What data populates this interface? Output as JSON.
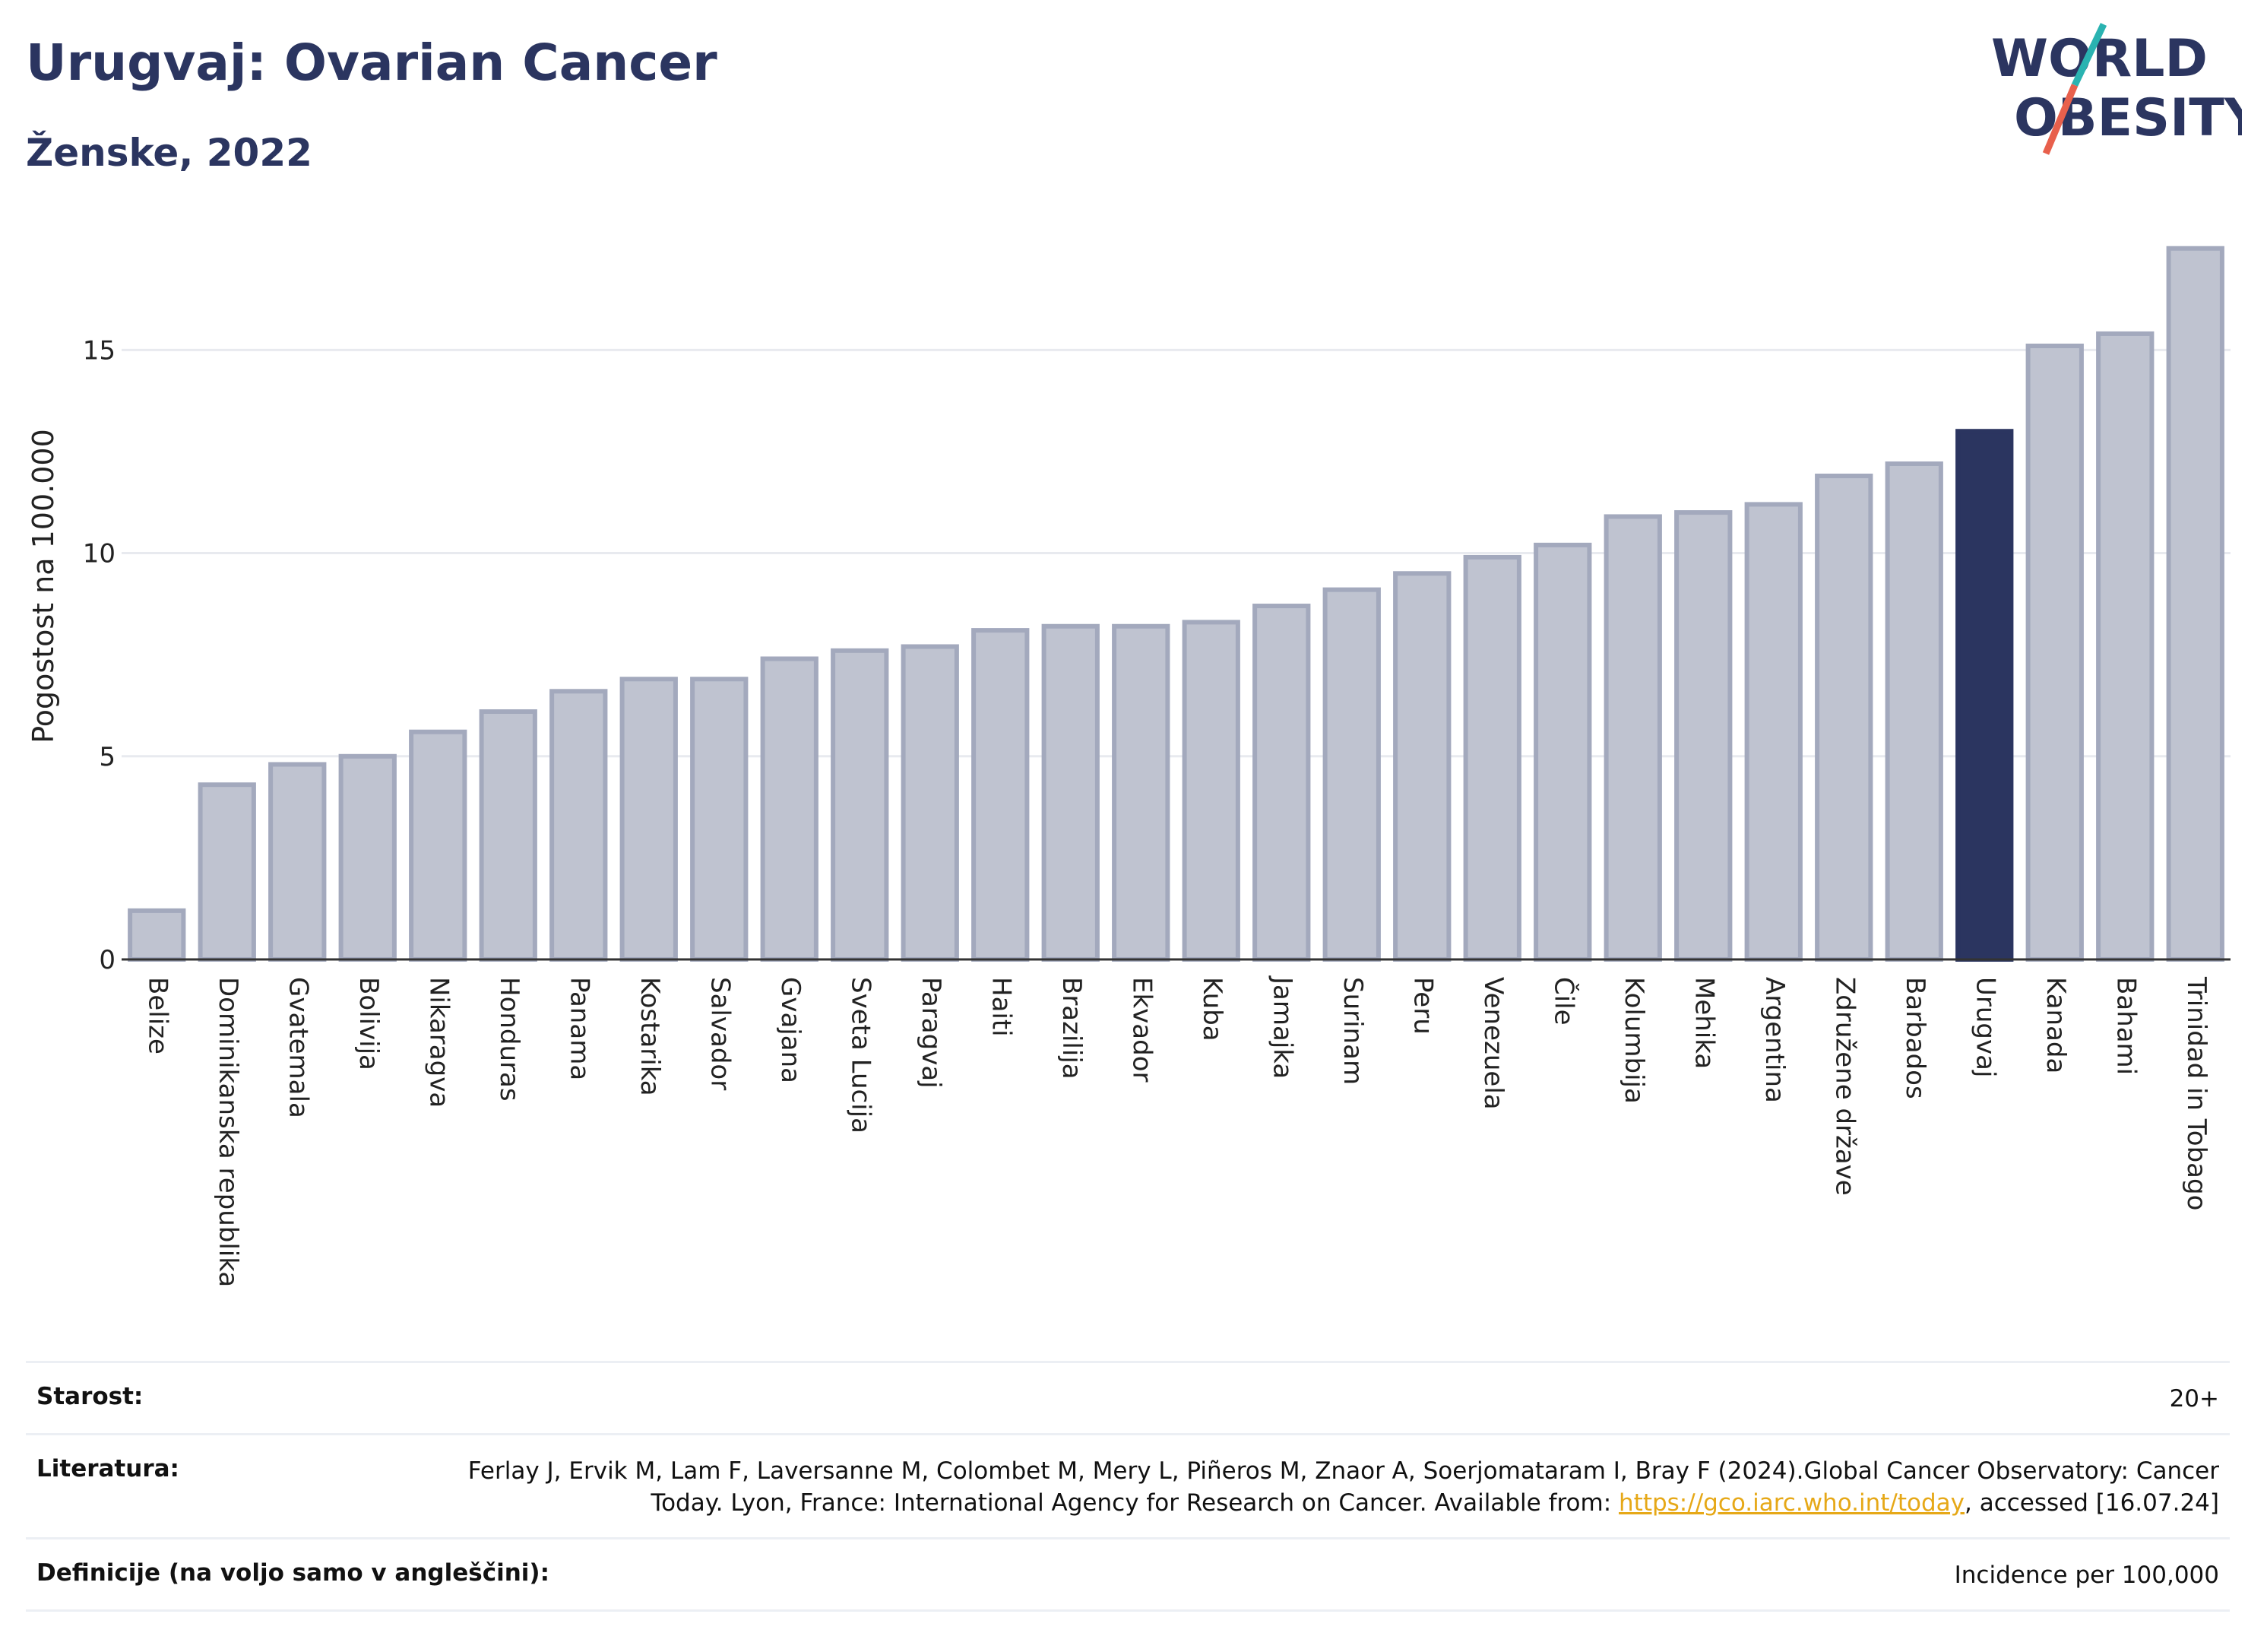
{
  "header": {
    "title": "Urugvaj: Ovarian Cancer",
    "subtitle": "Ženske, 2022"
  },
  "logo": {
    "line1": "WORLD",
    "line2": "OBESITY",
    "accent_teal": "#2ab3b1",
    "accent_red": "#e8604c"
  },
  "chart_data": {
    "type": "bar",
    "ylabel": "Pogostost na 100.000",
    "ylim": [
      0,
      18
    ],
    "yticks": [
      0,
      5,
      10,
      15
    ],
    "grid": true,
    "highlight": "Urugvaj",
    "colors": {
      "bar": "#bfc3d0",
      "bar_edge": "#a3a9bd",
      "highlight": "#2b3560"
    },
    "categories": [
      "Belize",
      "Dominikanska republika",
      "Gvatemala",
      "Bolivija",
      "Nikaragva",
      "Honduras",
      "Panama",
      "Kostarika",
      "Salvador",
      "Gvajana",
      "Sveta Lucija",
      "Paragvaj",
      "Haiti",
      "Brazilija",
      "Ekvador",
      "Kuba",
      "Jamajka",
      "Surinam",
      "Peru",
      "Venezuela",
      "Čile",
      "Kolumbija",
      "Mehika",
      "Argentina",
      "Združene države",
      "Barbados",
      "Urugvaj",
      "Kanada",
      "Bahami",
      "Trinidad in Tobago"
    ],
    "values": [
      1.2,
      4.3,
      4.8,
      5.0,
      5.6,
      6.1,
      6.6,
      6.9,
      6.9,
      7.4,
      7.6,
      7.7,
      8.1,
      8.2,
      8.2,
      8.3,
      8.7,
      9.1,
      9.5,
      9.9,
      10.2,
      10.9,
      11.0,
      11.2,
      11.9,
      12.2,
      13.0,
      15.1,
      15.4,
      17.5
    ]
  },
  "info": {
    "age": {
      "label": "Starost:",
      "value": "20+"
    },
    "reference": {
      "label": "Literatura:",
      "text_before": "Ferlay J, Ervik M, Lam F, Laversanne M, Colombet M, Mery L, Piñeros M, Znaor A, Soerjomataram I, Bray F (2024).Global Cancer Observatory: Cancer Today. Lyon, France: International Agency for Research on Cancer. Available from: ",
      "link": "https://gco.iarc.who.int/today",
      "text_after": ", accessed [16.07.24]"
    },
    "definitions": {
      "label": "Definicije (na voljo samo v angleščini):",
      "value": "Incidence per 100,000"
    }
  }
}
